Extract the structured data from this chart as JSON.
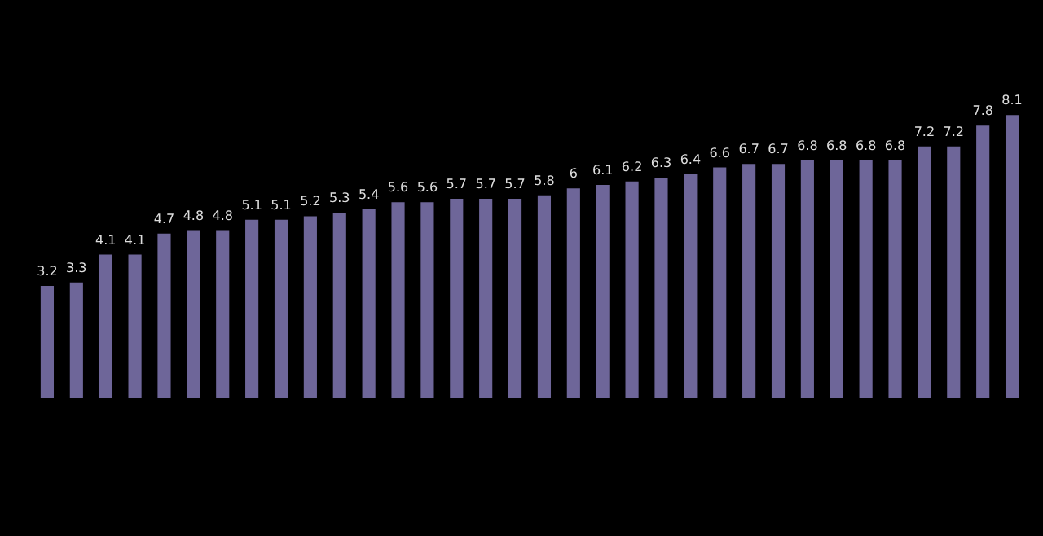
{
  "chart_data": {
    "type": "bar",
    "categories": [
      null,
      null,
      null,
      null,
      null,
      null,
      null,
      null,
      null,
      null,
      null,
      null,
      null,
      null,
      null,
      null,
      null,
      null,
      null,
      null,
      null,
      null,
      null,
      null,
      null,
      null,
      null,
      null,
      null,
      null,
      null,
      null,
      null,
      null
    ],
    "values": [
      3.2,
      3.3,
      4.1,
      4.1,
      4.7,
      4.8,
      4.8,
      5.1,
      5.1,
      5.2,
      5.3,
      5.4,
      5.6,
      5.6,
      5.7,
      5.7,
      5.7,
      5.8,
      6,
      6.1,
      6.2,
      6.3,
      6.4,
      6.6,
      6.7,
      6.7,
      6.8,
      6.8,
      6.8,
      6.8,
      7.2,
      7.2,
      7.8,
      8.1
    ],
    "color": "#6e6699",
    "data_labels": true
  }
}
